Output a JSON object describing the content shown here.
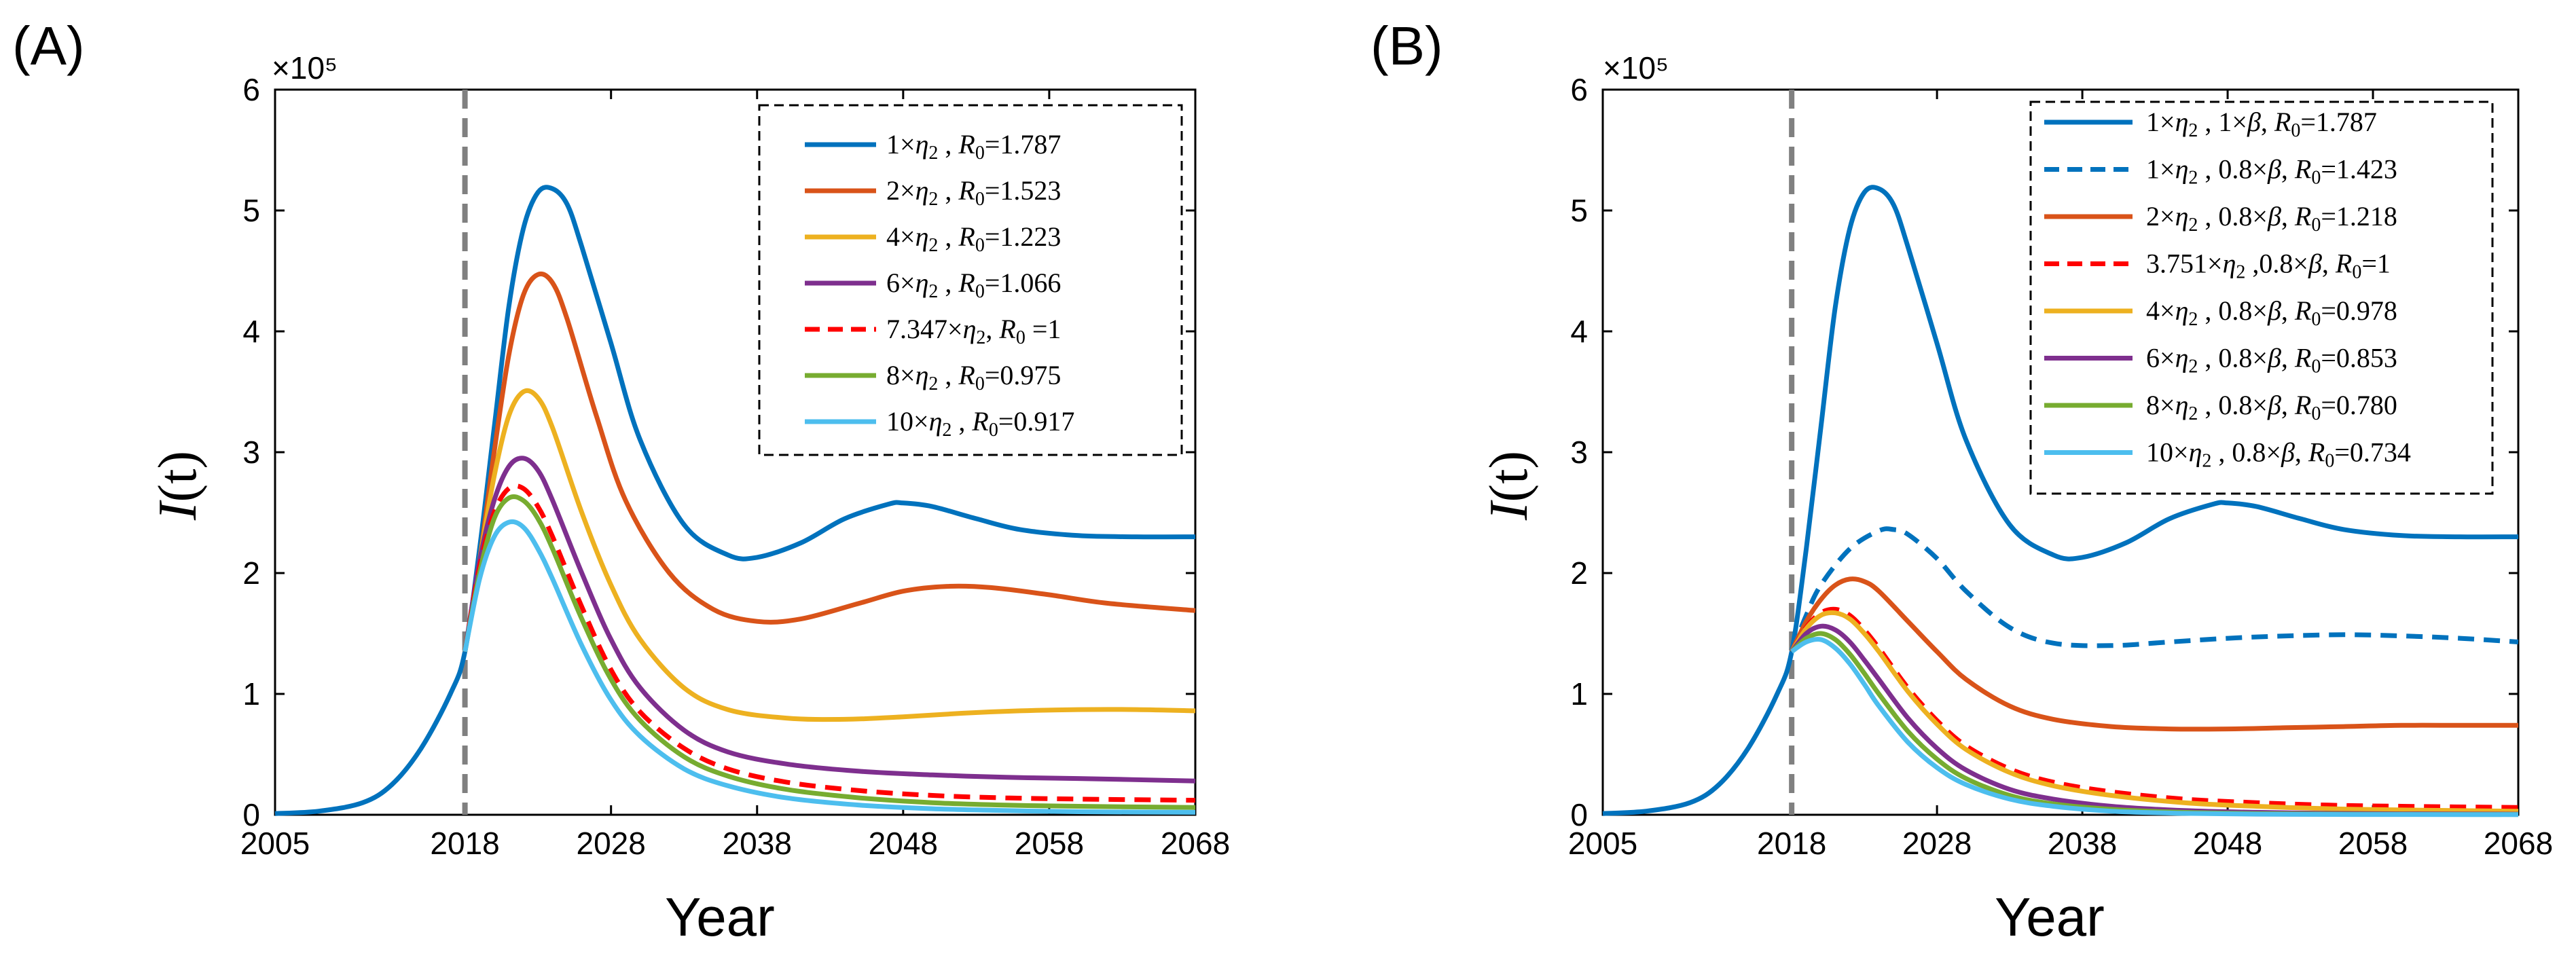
{
  "chart_data": [
    {
      "type": "line",
      "panel_label": "(A)",
      "xlabel": "Year",
      "ylabel": "I(t)",
      "y_multiplier": "×10⁵",
      "xlim": [
        2005,
        2068
      ],
      "ylim": [
        0,
        6
      ],
      "x_ticks": [
        "2005",
        "2018",
        "2028",
        "2038",
        "2048",
        "2058",
        "2068"
      ],
      "y_ticks": [
        "0",
        "1",
        "2",
        "3",
        "4",
        "5",
        "6"
      ],
      "reference_line_x": 2018,
      "grid": false,
      "legend_position": "top-right",
      "series": [
        {
          "name": "1×η₂ , R₀=1.787",
          "color": "#0072BD",
          "dash": "solid",
          "x": [
            2005,
            2008,
            2011,
            2013,
            2015,
            2017,
            2018,
            2019,
            2020,
            2021,
            2022,
            2023,
            2024,
            2025,
            2026,
            2028,
            2030,
            2033,
            2036,
            2038,
            2041,
            2044,
            2047,
            2048,
            2050,
            2053,
            2056,
            2060,
            2064,
            2068
          ],
          "y": [
            0.01,
            0.03,
            0.1,
            0.25,
            0.55,
            1.0,
            1.35,
            2.2,
            3.2,
            4.2,
            4.85,
            5.15,
            5.18,
            5.05,
            4.7,
            3.9,
            3.1,
            2.4,
            2.15,
            2.13,
            2.25,
            2.45,
            2.57,
            2.58,
            2.55,
            2.45,
            2.36,
            2.31,
            2.3,
            2.3
          ]
        },
        {
          "name": "2×η₂ , R₀=1.523",
          "color": "#D95319",
          "dash": "solid",
          "x": [
            2018,
            2019,
            2020,
            2021,
            2022,
            2023,
            2024,
            2025,
            2027,
            2029,
            2032,
            2035,
            2038,
            2041,
            2045,
            2048,
            2051,
            2054,
            2058,
            2062,
            2068
          ],
          "y": [
            1.35,
            2.1,
            3.0,
            3.8,
            4.3,
            4.47,
            4.4,
            4.1,
            3.3,
            2.6,
            2.0,
            1.7,
            1.6,
            1.62,
            1.75,
            1.85,
            1.89,
            1.88,
            1.82,
            1.75,
            1.69
          ]
        },
        {
          "name": "4×η₂ , R₀=1.223",
          "color": "#EDB120",
          "dash": "solid",
          "x": [
            2018,
            2019,
            2020,
            2021,
            2022,
            2023,
            2024,
            2026,
            2028,
            2030,
            2033,
            2036,
            2040,
            2044,
            2048,
            2052,
            2056,
            2060,
            2064,
            2068
          ],
          "y": [
            1.35,
            2.1,
            2.8,
            3.3,
            3.5,
            3.45,
            3.2,
            2.5,
            1.9,
            1.45,
            1.05,
            0.87,
            0.8,
            0.79,
            0.81,
            0.84,
            0.86,
            0.87,
            0.87,
            0.86
          ]
        },
        {
          "name": "6×η₂ , R₀=1.066",
          "color": "#7E2F8E",
          "dash": "solid",
          "x": [
            2018,
            2019,
            2020,
            2021,
            2022,
            2023,
            2024,
            2026,
            2028,
            2030,
            2033,
            2036,
            2040,
            2045,
            2050,
            2055,
            2060,
            2068
          ],
          "y": [
            1.35,
            2.1,
            2.6,
            2.88,
            2.95,
            2.85,
            2.6,
            2.0,
            1.45,
            1.05,
            0.7,
            0.52,
            0.42,
            0.36,
            0.33,
            0.31,
            0.3,
            0.28
          ]
        },
        {
          "name": "7.347×η₂, R₀ =1",
          "color": "#FF0000",
          "dash": "dashed",
          "x": [
            2018,
            2019,
            2020,
            2021,
            2022,
            2023,
            2024,
            2026,
            2028,
            2030,
            2033,
            2036,
            2040,
            2045,
            2050,
            2055,
            2060,
            2068
          ],
          "y": [
            1.35,
            2.05,
            2.5,
            2.7,
            2.7,
            2.55,
            2.3,
            1.72,
            1.2,
            0.85,
            0.55,
            0.38,
            0.27,
            0.2,
            0.16,
            0.14,
            0.13,
            0.12
          ]
        },
        {
          "name": "8×η₂ , R₀=0.975",
          "color": "#77AC30",
          "dash": "solid",
          "x": [
            2018,
            2019,
            2020,
            2021,
            2022,
            2023,
            2024,
            2026,
            2028,
            2030,
            2033,
            2036,
            2040,
            2045,
            2050,
            2055,
            2060,
            2068
          ],
          "y": [
            1.35,
            2.0,
            2.45,
            2.62,
            2.6,
            2.45,
            2.2,
            1.62,
            1.12,
            0.78,
            0.48,
            0.32,
            0.21,
            0.14,
            0.1,
            0.08,
            0.07,
            0.06
          ]
        },
        {
          "name": "10×η₂ , R₀=0.917",
          "color": "#4DBEEE",
          "dash": "solid",
          "x": [
            2018,
            2019,
            2020,
            2021,
            2022,
            2023,
            2024,
            2026,
            2028,
            2030,
            2033,
            2036,
            2040,
            2045,
            2050,
            2055,
            2060,
            2068
          ],
          "y": [
            1.35,
            1.95,
            2.3,
            2.42,
            2.38,
            2.2,
            1.95,
            1.4,
            0.95,
            0.65,
            0.38,
            0.24,
            0.14,
            0.08,
            0.05,
            0.035,
            0.025,
            0.02
          ]
        }
      ]
    },
    {
      "type": "line",
      "panel_label": "(B)",
      "xlabel": "Year",
      "ylabel": "I(t)",
      "y_multiplier": "×10⁵",
      "xlim": [
        2005,
        2068
      ],
      "ylim": [
        0,
        6
      ],
      "x_ticks": [
        "2005",
        "2018",
        "2028",
        "2038",
        "2048",
        "2058",
        "2068"
      ],
      "y_ticks": [
        "0",
        "1",
        "2",
        "3",
        "4",
        "5",
        "6"
      ],
      "reference_line_x": 2018,
      "grid": false,
      "legend_position": "top-right",
      "series": [
        {
          "name": "1×η₂ , 1×β, R₀=1.787",
          "color": "#0072BD",
          "dash": "solid",
          "x": [
            2005,
            2008,
            2011,
            2013,
            2015,
            2017,
            2018,
            2019,
            2020,
            2021,
            2022,
            2023,
            2024,
            2025,
            2026,
            2028,
            2030,
            2033,
            2036,
            2038,
            2041,
            2044,
            2047,
            2048,
            2050,
            2053,
            2056,
            2060,
            2064,
            2068
          ],
          "y": [
            0.01,
            0.03,
            0.1,
            0.25,
            0.55,
            1.0,
            1.35,
            2.2,
            3.2,
            4.2,
            4.85,
            5.15,
            5.18,
            5.05,
            4.7,
            3.9,
            3.1,
            2.4,
            2.15,
            2.13,
            2.25,
            2.45,
            2.57,
            2.58,
            2.55,
            2.45,
            2.36,
            2.31,
            2.3,
            2.3
          ]
        },
        {
          "name": "1×η₂ , 0.8×β, R₀=1.423",
          "color": "#0072BD",
          "dash": "dashed",
          "x": [
            2018,
            2019,
            2020,
            2022,
            2024,
            2025,
            2026,
            2028,
            2030,
            2033,
            2036,
            2040,
            2044,
            2048,
            2052,
            2056,
            2060,
            2064,
            2068
          ],
          "y": [
            1.35,
            1.65,
            1.9,
            2.2,
            2.35,
            2.36,
            2.32,
            2.12,
            1.85,
            1.55,
            1.42,
            1.4,
            1.43,
            1.46,
            1.48,
            1.49,
            1.48,
            1.46,
            1.43
          ]
        },
        {
          "name": "2×η₂ , 0.8×β, R₀=1.218",
          "color": "#D95319",
          "dash": "solid",
          "x": [
            2018,
            2019,
            2020,
            2021,
            2022,
            2023,
            2024,
            2026,
            2028,
            2030,
            2033,
            2036,
            2040,
            2044,
            2048,
            2052,
            2056,
            2060,
            2064,
            2068
          ],
          "y": [
            1.35,
            1.6,
            1.78,
            1.9,
            1.95,
            1.93,
            1.85,
            1.6,
            1.35,
            1.12,
            0.9,
            0.79,
            0.73,
            0.71,
            0.71,
            0.72,
            0.73,
            0.74,
            0.74,
            0.74
          ]
        },
        {
          "name": "3.751×η₂ ,0.8×β, R₀=1",
          "color": "#FF0000",
          "dash": "dashed",
          "x": [
            2018,
            2019,
            2020,
            2021,
            2022,
            2023,
            2024,
            2026,
            2028,
            2030,
            2033,
            2036,
            2040,
            2045,
            2050,
            2055,
            2060,
            2068
          ],
          "y": [
            1.35,
            1.55,
            1.67,
            1.7,
            1.65,
            1.53,
            1.38,
            1.05,
            0.78,
            0.57,
            0.38,
            0.27,
            0.19,
            0.13,
            0.1,
            0.08,
            0.07,
            0.06
          ]
        },
        {
          "name": "4×η₂ , 0.8×β, R₀=0.978",
          "color": "#EDB120",
          "dash": "solid",
          "x": [
            2018,
            2019,
            2020,
            2021,
            2022,
            2023,
            2024,
            2026,
            2028,
            2030,
            2033,
            2036,
            2040,
            2045,
            2050,
            2055,
            2060,
            2068
          ],
          "y": [
            1.35,
            1.54,
            1.65,
            1.67,
            1.62,
            1.5,
            1.35,
            1.02,
            0.75,
            0.54,
            0.35,
            0.24,
            0.16,
            0.1,
            0.07,
            0.05,
            0.04,
            0.03
          ]
        },
        {
          "name": "6×η₂ , 0.8×β, R₀=0.853",
          "color": "#7E2F8E",
          "dash": "solid",
          "x": [
            2018,
            2019,
            2020,
            2021,
            2022,
            2023,
            2024,
            2026,
            2028,
            2030,
            2033,
            2036,
            2040,
            2045,
            2050,
            2055,
            2060,
            2068
          ],
          "y": [
            1.35,
            1.5,
            1.56,
            1.53,
            1.43,
            1.28,
            1.12,
            0.8,
            0.55,
            0.37,
            0.21,
            0.13,
            0.07,
            0.035,
            0.02,
            0.012,
            0.008,
            0.005
          ]
        },
        {
          "name": "8×η₂ , 0.8×β, R₀=0.780",
          "color": "#77AC30",
          "dash": "solid",
          "x": [
            2018,
            2019,
            2020,
            2021,
            2022,
            2023,
            2024,
            2026,
            2028,
            2030,
            2033,
            2036,
            2040,
            2045,
            2050,
            2055,
            2060,
            2068
          ],
          "y": [
            1.35,
            1.46,
            1.5,
            1.45,
            1.33,
            1.17,
            1.0,
            0.69,
            0.46,
            0.3,
            0.16,
            0.09,
            0.045,
            0.02,
            0.01,
            0.006,
            0.004,
            0.002
          ]
        },
        {
          "name": "10×η₂ , 0.8×β, R₀=0.734",
          "color": "#4DBEEE",
          "dash": "solid",
          "x": [
            2018,
            2019,
            2020,
            2021,
            2022,
            2023,
            2024,
            2026,
            2028,
            2030,
            2033,
            2036,
            2040,
            2045,
            2050,
            2055,
            2060,
            2068
          ],
          "y": [
            1.35,
            1.43,
            1.45,
            1.38,
            1.25,
            1.08,
            0.9,
            0.6,
            0.39,
            0.25,
            0.13,
            0.07,
            0.03,
            0.012,
            0.005,
            0.003,
            0.002,
            0.001
          ]
        }
      ]
    }
  ]
}
